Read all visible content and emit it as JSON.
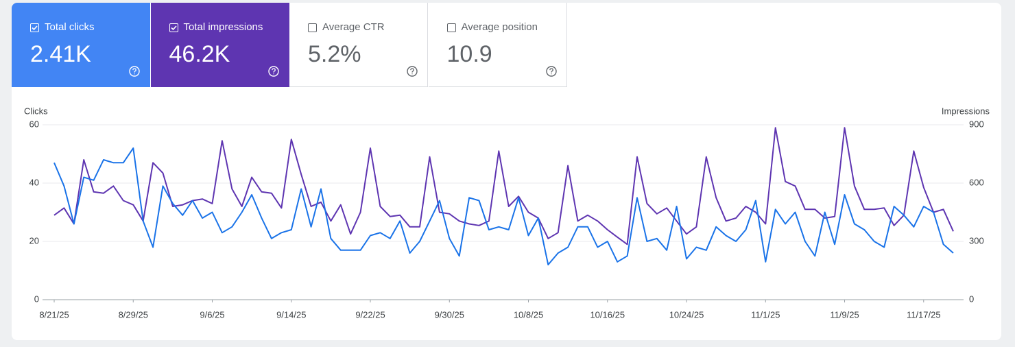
{
  "metrics": [
    {
      "label": "Total clicks",
      "value": "2.41K",
      "checked": true,
      "color": "#4285f4"
    },
    {
      "label": "Total impressions",
      "value": "46.2K",
      "checked": true,
      "color": "#5e35b1"
    },
    {
      "label": "Average CTR",
      "value": "5.2%",
      "checked": false
    },
    {
      "label": "Average position",
      "value": "10.9",
      "checked": false
    }
  ],
  "chart_data": {
    "type": "line",
    "y_label": "Clicks",
    "y2_label": "Impressions",
    "categories": [
      "8/21/25",
      null,
      null,
      null,
      null,
      null,
      null,
      null,
      "8/29/25",
      null,
      null,
      null,
      null,
      null,
      null,
      null,
      "9/6/25",
      null,
      null,
      null,
      null,
      null,
      null,
      null,
      "9/14/25",
      null,
      null,
      null,
      null,
      null,
      null,
      null,
      "9/22/25",
      null,
      null,
      null,
      null,
      null,
      null,
      null,
      "9/30/25",
      null,
      null,
      null,
      null,
      null,
      null,
      null,
      "10/8/25",
      null,
      null,
      null,
      null,
      null,
      null,
      null,
      "10/16/25",
      null,
      null,
      null,
      null,
      null,
      null,
      null,
      "10/24/25",
      null,
      null,
      null,
      null,
      null,
      null,
      null,
      "11/1/25",
      null,
      null,
      null,
      null,
      null,
      null,
      null,
      "11/9/25",
      null,
      null,
      null,
      null,
      null,
      null,
      null,
      "11/17/25",
      null,
      null,
      null
    ],
    "series": [
      {
        "color": "#1a73e8",
        "axis": "y",
        "values": [
          47,
          39,
          26,
          42,
          41,
          48,
          47,
          47,
          52,
          27,
          18,
          39,
          33,
          29,
          34,
          28,
          30,
          23,
          25,
          30,
          36,
          28,
          21,
          23,
          24,
          38,
          25,
          38,
          21,
          17,
          17,
          17,
          22,
          23,
          21,
          27,
          16,
          20,
          27,
          34,
          21,
          15,
          35,
          34,
          24,
          25,
          24,
          35,
          22,
          28,
          12,
          16,
          18,
          25,
          25,
          18,
          20,
          13,
          15,
          35,
          20,
          21,
          17,
          32,
          14,
          18,
          17,
          25,
          22,
          20,
          24,
          34,
          13,
          31,
          26,
          30,
          20,
          15,
          30,
          19,
          36,
          26,
          24,
          20,
          18,
          32,
          29,
          25,
          32,
          30,
          19,
          16
        ]
      },
      {
        "color": "#5e35b1",
        "axis": "y2",
        "values": [
          435,
          472,
          390,
          720,
          555,
          548,
          585,
          510,
          488,
          405,
          705,
          652,
          480,
          488,
          510,
          518,
          495,
          818,
          570,
          480,
          630,
          555,
          548,
          472,
          825,
          645,
          480,
          502,
          405,
          488,
          338,
          450,
          780,
          480,
          428,
          435,
          375,
          375,
          735,
          450,
          442,
          405,
          390,
          382,
          405,
          765,
          480,
          532,
          450,
          420,
          315,
          345,
          690,
          405,
          435,
          405,
          360,
          322,
          285,
          735,
          495,
          442,
          472,
          405,
          338,
          375,
          735,
          525,
          405,
          420,
          480,
          450,
          390,
          885,
          608,
          585,
          465,
          465,
          420,
          428,
          885,
          585,
          465,
          465,
          472,
          382,
          435,
          765,
          578,
          450,
          465,
          352
        ]
      }
    ],
    "ylim": [
      0,
      60
    ],
    "yticks": [
      0,
      20,
      40,
      60
    ],
    "y2lim": [
      0,
      900
    ],
    "y2ticks": [
      0,
      300,
      600,
      900
    ],
    "grid": true
  }
}
